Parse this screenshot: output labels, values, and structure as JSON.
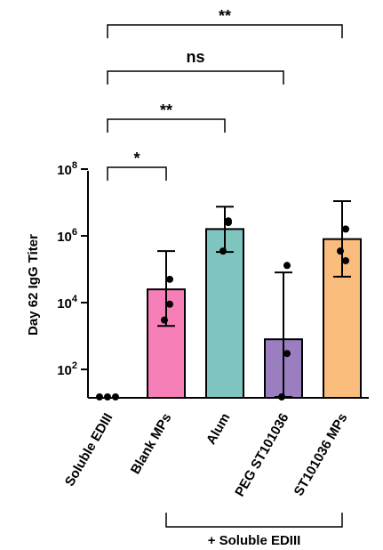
{
  "chart_data": {
    "type": "bar",
    "title": "",
    "xlabel": "",
    "ylabel": "Day 62 IgG Titer",
    "yscale": "log10",
    "ylim": [
      15,
      100000000
    ],
    "yticks": [
      {
        "value": 100,
        "base": "10",
        "exp": "2"
      },
      {
        "value": 10000,
        "base": "10",
        "exp": "4"
      },
      {
        "value": 1000000,
        "base": "10",
        "exp": "6"
      },
      {
        "value": 100000000,
        "base": "10",
        "exp": "8"
      }
    ],
    "categories": [
      "Soluble EDIII",
      "Blank MPs",
      "Alum",
      "PEG ST101036",
      "ST101036 MPs"
    ],
    "colors": [
      "#ffffff",
      "#f77fb8",
      "#7fc5bf",
      "#9a7ec0",
      "#fbbd7e"
    ],
    "values": [
      15,
      25000,
      1600000,
      800,
      800000
    ],
    "error_low": [
      15,
      2000,
      330000,
      15,
      60000
    ],
    "error_high": [
      15,
      350000,
      7500000,
      80000,
      11000000
    ],
    "points": [
      [
        15,
        15,
        15
      ],
      [
        50000,
        9000,
        3000
      ],
      [
        2800000,
        2500000,
        350000
      ],
      [
        130000,
        300,
        15
      ],
      [
        1600000,
        180000,
        350000
      ]
    ],
    "comparisons": [
      {
        "from": 0,
        "to": 1,
        "label": "*"
      },
      {
        "from": 0,
        "to": 2,
        "label": "**"
      },
      {
        "from": 0,
        "to": 3,
        "label": "ns"
      },
      {
        "from": 0,
        "to": 4,
        "label": "**"
      }
    ],
    "group_label": "+ Soluble EDIII"
  }
}
